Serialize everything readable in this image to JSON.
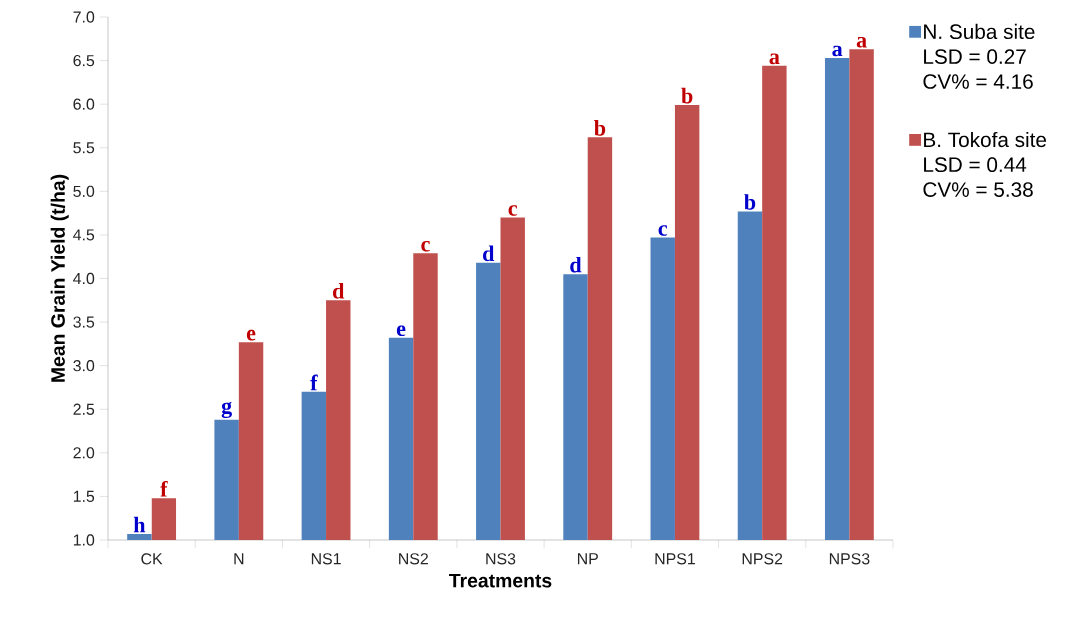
{
  "chart_data": {
    "type": "bar",
    "xlabel": "Treatments",
    "ylabel": "Mean Grain Yield (t/ha)",
    "categories": [
      "CK",
      "N",
      "NS1",
      "NS2",
      "NS3",
      "NP",
      "NPS1",
      "NPS2",
      "NPS3"
    ],
    "series": [
      {
        "name": "N. Suba site",
        "color": "#4f81bd",
        "values": [
          1.07,
          2.38,
          2.7,
          3.32,
          4.18,
          4.05,
          4.47,
          4.77,
          6.53
        ],
        "value_labels": [
          "h",
          "g",
          "f",
          "e",
          "d",
          "d",
          "c",
          "b",
          "a"
        ]
      },
      {
        "name": "B. Tokofa site",
        "color": "#c0504d",
        "values": [
          1.48,
          3.27,
          3.75,
          4.29,
          4.7,
          5.62,
          5.99,
          6.44,
          6.63
        ],
        "value_labels": [
          "f",
          "e",
          "d",
          "c",
          "c",
          "b",
          "b",
          "a",
          "a"
        ]
      }
    ],
    "annotations": [
      "LSD = 0.27",
      "CV% = 4.16",
      "LSD = 0.44",
      "CV% = 5.38"
    ],
    "ylim": [
      1.0,
      7.0
    ],
    "yticks": [
      {
        "value": 1.0,
        "label": "1.0"
      },
      {
        "value": 1.5,
        "label": "1.5"
      },
      {
        "value": 2.0,
        "label": "2.0"
      },
      {
        "value": 2.5,
        "label": "2.5"
      },
      {
        "value": 3.0,
        "label": "3.0"
      },
      {
        "value": 3.5,
        "label": "3.5"
      },
      {
        "value": 4.0,
        "label": "4.0"
      },
      {
        "value": 4.5,
        "label": "4.5"
      },
      {
        "value": 5.0,
        "label": "5.0"
      },
      {
        "value": 5.5,
        "label": "5.5"
      },
      {
        "value": 6.0,
        "label": "6.0"
      },
      {
        "value": 6.5,
        "label": "6.5"
      },
      {
        "value": 7.0,
        "label": "7.0"
      }
    ],
    "legend": "right",
    "grid": false
  }
}
